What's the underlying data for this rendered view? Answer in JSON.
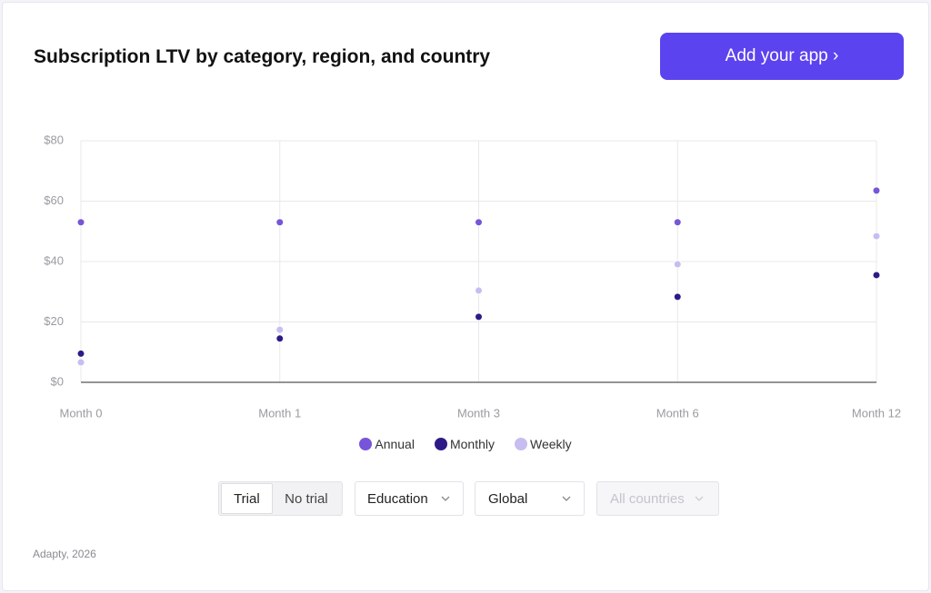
{
  "header": {
    "title": "Subscription LTV by category, region, and country",
    "button": "Add your app ›"
  },
  "chart_data": {
    "type": "line",
    "categories": [
      "Month 0",
      "Month 1",
      "Month 3",
      "Month 6",
      "Month 12"
    ],
    "series": [
      {
        "name": "Annual",
        "color": "#8a70d9",
        "marker_color": "#7655d9",
        "values": [
          53,
          53,
          53,
          53,
          63.5
        ]
      },
      {
        "name": "Monthly",
        "color": "#4a2f9e",
        "marker_color": "#2e1a87",
        "values": [
          9.5,
          14.5,
          21.7,
          28.3,
          35.5
        ]
      },
      {
        "name": "Weekly",
        "color": "#c9bff0",
        "marker_color": "#c7bdf0",
        "values": [
          6.6,
          17.4,
          30.4,
          39.1,
          48.4
        ]
      }
    ],
    "ylim": [
      0,
      80
    ],
    "yticks": [
      {
        "value": 0,
        "label": "$0"
      },
      {
        "value": 20,
        "label": "$20"
      },
      {
        "value": 40,
        "label": "$40"
      },
      {
        "value": 60,
        "label": "$60"
      },
      {
        "value": 80,
        "label": "$80"
      }
    ],
    "grid": true
  },
  "controls": {
    "trial": "Trial",
    "no_trial": "No trial",
    "category": "Education",
    "region": "Global",
    "country": "All countries"
  },
  "footer": "Adapty, 2026"
}
